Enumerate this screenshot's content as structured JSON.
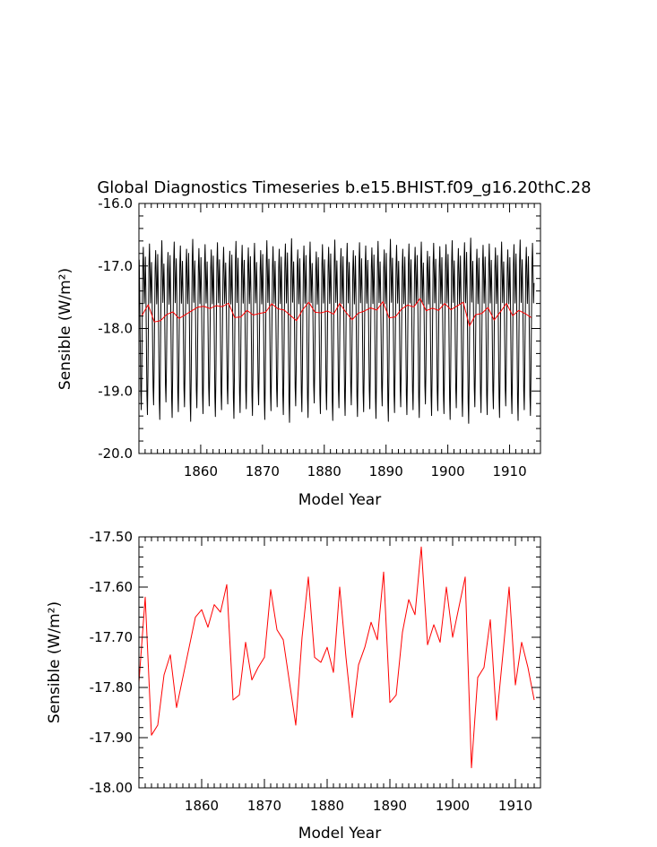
{
  "chart_data": [
    {
      "type": "line",
      "title": "Global Diagnostics Timeseries b.e15.BHIST.f09_g16.20thC.28",
      "xlabel": "Model Year",
      "ylabel": "Sensible (W/m²)",
      "xlim": [
        1850,
        1915
      ],
      "ylim": [
        -20.0,
        -16.0
      ],
      "xticks": [
        "1860",
        "1870",
        "1880",
        "1890",
        "1900",
        "1910"
      ],
      "yticks": [
        "-20.0",
        "-19.0",
        "-18.0",
        "-17.0",
        "-16.0"
      ],
      "grid": false,
      "legend": "none",
      "series": [
        {
          "color": "#000000",
          "description_of_values": "monthly values, 12 per year",
          "monthly_cycle_template": [
            -16.9,
            -17.4,
            -18.2,
            -19.0,
            -19.3,
            -18.7,
            -17.8,
            -17.0,
            -16.7,
            -17.1,
            -17.6,
            -17.3
          ],
          "annual_amplitude_scale": [
            1.0,
            1.05,
            0.95,
            1.1,
            0.92,
            1.08,
            1.02,
            0.97,
            1.12,
            0.98,
            1.04,
            0.96,
            1.07,
            1.0,
            0.94,
            1.09,
            1.03,
            0.99,
            1.06,
            0.95,
            1.1,
            1.01,
            0.97,
            1.05,
            1.13,
            0.96,
            1.02,
            1.08,
            0.93,
            1.04,
            1.0,
            1.11,
            0.98,
            1.06,
            0.95,
            1.07,
            1.02,
            0.99,
            1.09,
            0.96,
            1.12,
            1.03,
            0.97,
            1.05,
            1.0,
            1.08,
            0.94,
            1.06,
            1.01,
            1.04,
            1.1,
            0.98,
            1.07,
            1.14,
            0.97,
            1.03,
            1.05,
            0.99,
            1.08,
            0.96,
            1.04,
            1.11,
            1.0,
            1.06
          ]
        },
        {
          "color": "#ff0000",
          "x": [
            1850,
            1851,
            1852,
            1853,
            1854,
            1855,
            1856,
            1857,
            1858,
            1859,
            1860,
            1861,
            1862,
            1863,
            1864,
            1865,
            1866,
            1867,
            1868,
            1869,
            1870,
            1871,
            1872,
            1873,
            1874,
            1875,
            1876,
            1877,
            1878,
            1879,
            1880,
            1881,
            1882,
            1883,
            1884,
            1885,
            1886,
            1887,
            1888,
            1889,
            1890,
            1891,
            1892,
            1893,
            1894,
            1895,
            1896,
            1897,
            1898,
            1899,
            1900,
            1901,
            1902,
            1903,
            1904,
            1905,
            1906,
            1907,
            1908,
            1909,
            1910,
            1911,
            1912,
            1913
          ],
          "y": [
            -17.79,
            -17.62,
            -17.895,
            -17.875,
            -17.775,
            -17.735,
            -17.84,
            -17.78,
            -17.72,
            -17.66,
            -17.645,
            -17.68,
            -17.635,
            -17.65,
            -17.595,
            -17.825,
            -17.815,
            -17.71,
            -17.785,
            -17.76,
            -17.74,
            -17.605,
            -17.685,
            -17.705,
            -17.79,
            -17.875,
            -17.7,
            -17.58,
            -17.74,
            -17.75,
            -17.72,
            -17.77,
            -17.6,
            -17.74,
            -17.86,
            -17.755,
            -17.72,
            -17.67,
            -17.705,
            -17.57,
            -17.83,
            -17.815,
            -17.69,
            -17.625,
            -17.655,
            -17.52,
            -17.715,
            -17.675,
            -17.71,
            -17.6,
            -17.7,
            -17.64,
            -17.58,
            -17.96,
            -17.78,
            -17.76,
            -17.665,
            -17.865,
            -17.735,
            -17.6,
            -17.795,
            -17.71,
            -17.76,
            -17.825
          ]
        }
      ]
    },
    {
      "type": "line",
      "title": "",
      "xlabel": "Model Year",
      "ylabel": "Sensible (W/m²)",
      "xlim": [
        1850,
        1914
      ],
      "ylim": [
        -18.0,
        -17.5
      ],
      "xticks": [
        "1860",
        "1870",
        "1880",
        "1890",
        "1900",
        "1910"
      ],
      "yticks": [
        "-18.00",
        "-17.90",
        "-17.80",
        "-17.70",
        "-17.60",
        "-17.50"
      ],
      "grid": false,
      "legend": "none",
      "series": [
        {
          "color": "#ff0000",
          "x": [
            1850,
            1851,
            1852,
            1853,
            1854,
            1855,
            1856,
            1857,
            1858,
            1859,
            1860,
            1861,
            1862,
            1863,
            1864,
            1865,
            1866,
            1867,
            1868,
            1869,
            1870,
            1871,
            1872,
            1873,
            1874,
            1875,
            1876,
            1877,
            1878,
            1879,
            1880,
            1881,
            1882,
            1883,
            1884,
            1885,
            1886,
            1887,
            1888,
            1889,
            1890,
            1891,
            1892,
            1893,
            1894,
            1895,
            1896,
            1897,
            1898,
            1899,
            1900,
            1901,
            1902,
            1903,
            1904,
            1905,
            1906,
            1907,
            1908,
            1909,
            1910,
            1911,
            1912,
            1913
          ],
          "y": [
            -17.79,
            -17.62,
            -17.895,
            -17.875,
            -17.775,
            -17.735,
            -17.84,
            -17.78,
            -17.72,
            -17.66,
            -17.645,
            -17.68,
            -17.635,
            -17.65,
            -17.595,
            -17.825,
            -17.815,
            -17.71,
            -17.785,
            -17.76,
            -17.74,
            -17.605,
            -17.685,
            -17.705,
            -17.79,
            -17.875,
            -17.7,
            -17.58,
            -17.74,
            -17.75,
            -17.72,
            -17.77,
            -17.6,
            -17.74,
            -17.86,
            -17.755,
            -17.72,
            -17.67,
            -17.705,
            -17.57,
            -17.83,
            -17.815,
            -17.69,
            -17.625,
            -17.655,
            -17.52,
            -17.715,
            -17.675,
            -17.71,
            -17.6,
            -17.7,
            -17.64,
            -17.58,
            -17.96,
            -17.78,
            -17.76,
            -17.665,
            -17.865,
            -17.735,
            -17.6,
            -17.795,
            -17.71,
            -17.76,
            -17.825
          ]
        }
      ]
    }
  ]
}
